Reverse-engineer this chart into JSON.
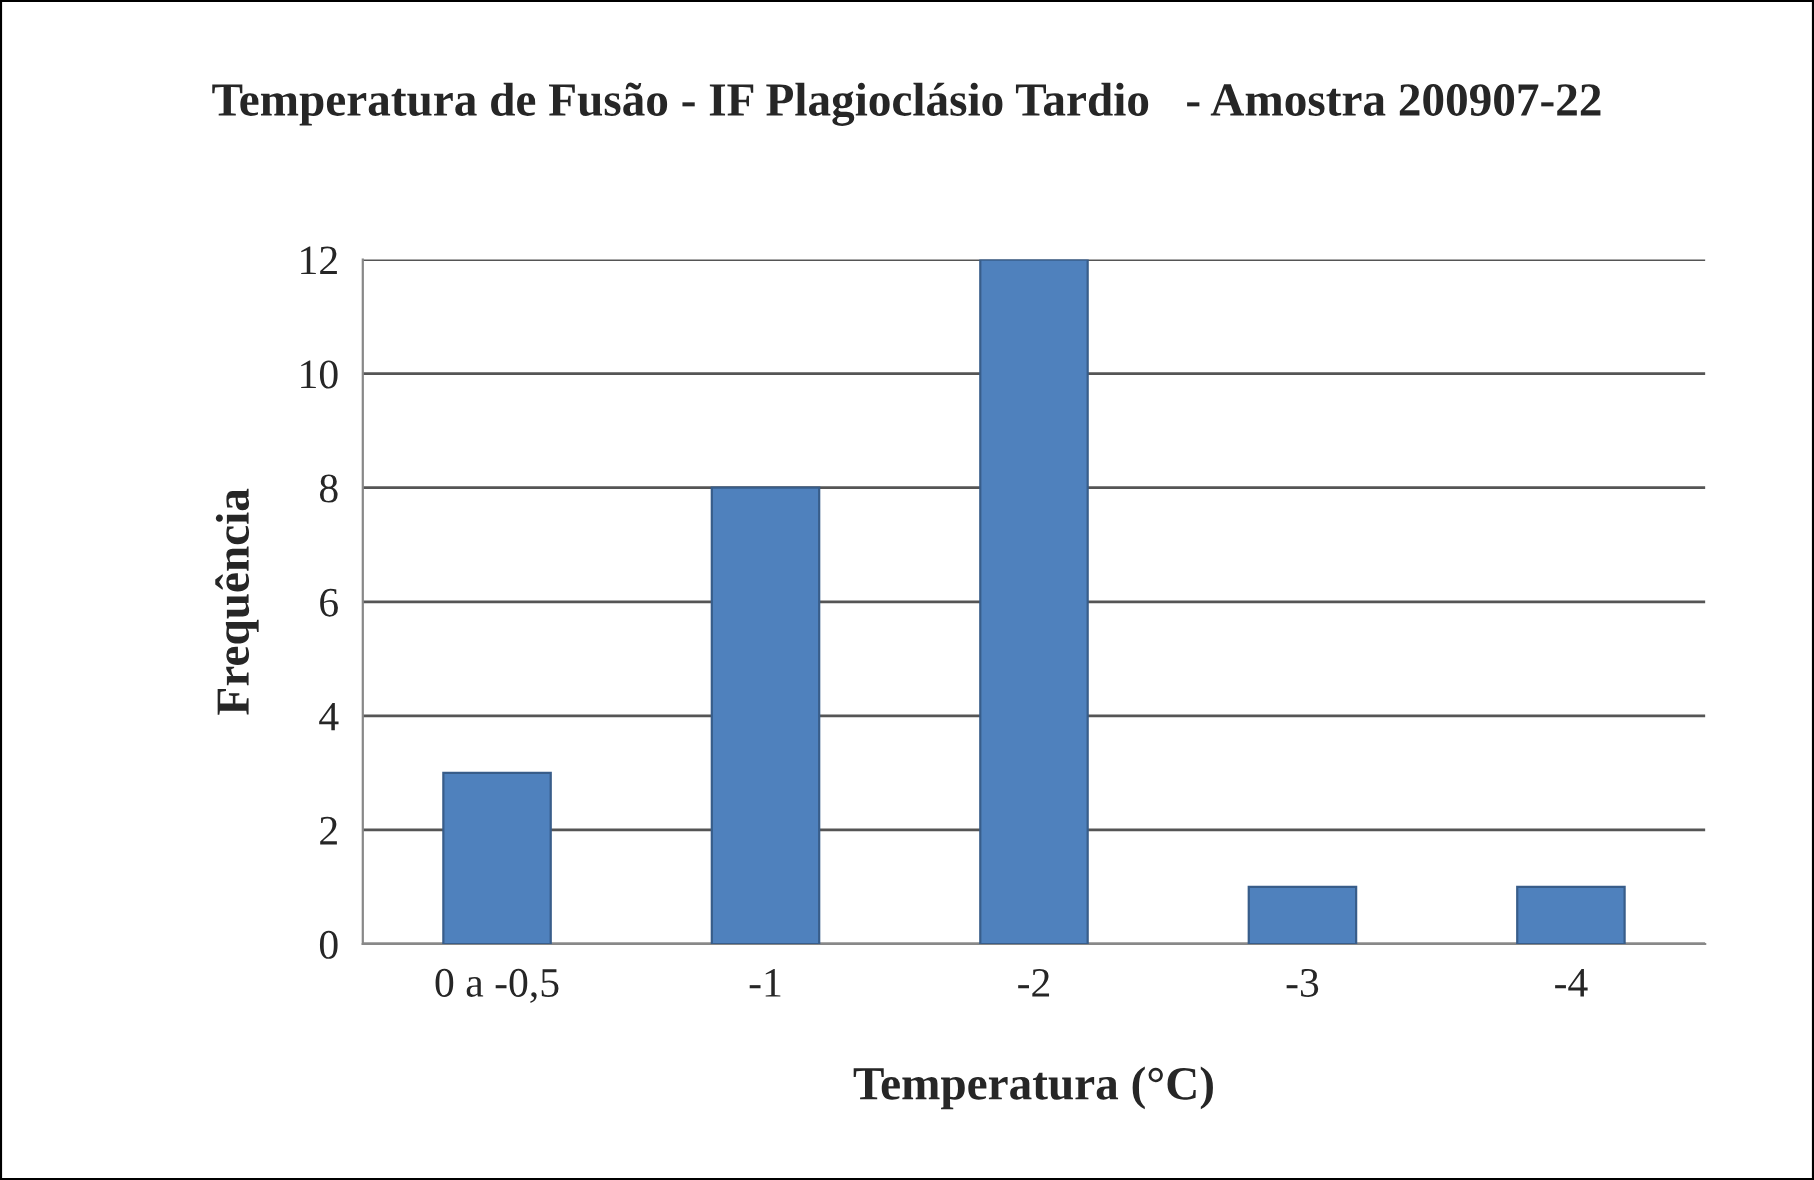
{
  "chart_data": {
    "type": "bar",
    "title": "Temperatura de Fusão - IF Plagioclásio Tardio   - Amostra 200907-22",
    "xlabel": "Temperatura (°C)",
    "ylabel": "Frequência",
    "categories": [
      "0 a -0,5",
      "-1",
      "-2",
      "-3",
      "-4"
    ],
    "values": [
      3,
      8,
      12,
      1,
      1
    ],
    "color": "#4f81bd",
    "ylim": [
      0,
      12
    ],
    "yticks": [
      0,
      2,
      4,
      6,
      8,
      10,
      12
    ],
    "grid": "y"
  }
}
